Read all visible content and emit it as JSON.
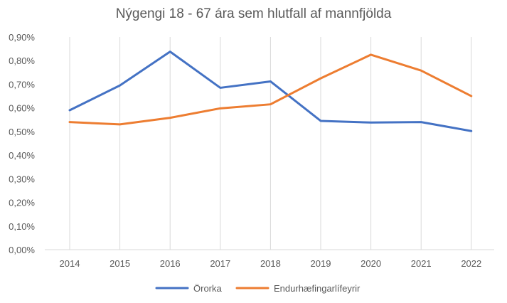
{
  "chart_data": {
    "type": "line",
    "title": "Nýgengi 18 - 67 ára sem hlutfall af mannfjölda",
    "xlabel": "",
    "ylabel": "",
    "categories": [
      "2014",
      "2015",
      "2016",
      "2017",
      "2018",
      "2019",
      "2020",
      "2021",
      "2022"
    ],
    "y_ticks": [
      "0,00%",
      "0,10%",
      "0,20%",
      "0,30%",
      "0,40%",
      "0,50%",
      "0,60%",
      "0,70%",
      "0,80%",
      "0,90%"
    ],
    "ylim": [
      0,
      0.9
    ],
    "grid": "vertical",
    "legend_position": "bottom",
    "series": [
      {
        "name": "Örorka",
        "color": "#4472C4",
        "values": [
          0.59,
          0.695,
          0.838,
          0.685,
          0.712,
          0.545,
          0.538,
          0.54,
          0.502
        ]
      },
      {
        "name": "Endurhæfingarlífeyrir",
        "color": "#ED7D31",
        "values": [
          0.54,
          0.53,
          0.558,
          0.598,
          0.615,
          0.725,
          0.825,
          0.758,
          0.65
        ]
      }
    ]
  }
}
